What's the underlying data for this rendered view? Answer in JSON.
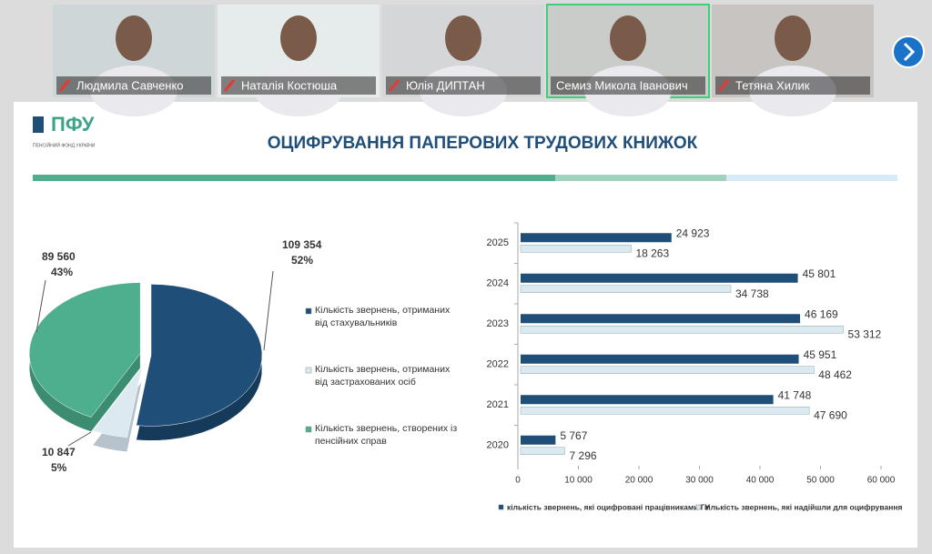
{
  "participants": [
    {
      "name": "Людмила Савченко",
      "muted": true,
      "active": false
    },
    {
      "name": "Наталія Костюша",
      "muted": true,
      "active": false
    },
    {
      "name": "Юлія ДИПТАН",
      "muted": true,
      "active": false
    },
    {
      "name": "Семиз Микола Іванович",
      "muted": false,
      "active": true
    },
    {
      "name": "Тетяна Хилик",
      "muted": true,
      "active": false
    }
  ],
  "logo": {
    "mark": "ПФУ",
    "caption": "ПЕНСІЙНИЙ ФОНД УКРАЇНИ"
  },
  "title": "ОЦИФРУВАННЯ ПАПЕРОВИХ ТРУДОВИХ КНИЖОК",
  "chart_data": [
    {
      "type": "pie",
      "categories": [
        "Кількість звернень, отриманих від стахувальників",
        "Кількість звернень, отриманих від застрахованих осіб",
        "Кількість звернень, створених із пенсійних справ"
      ],
      "values": [
        109354,
        10847,
        89560
      ],
      "value_labels": [
        "109 354",
        "10 847",
        "89 560"
      ],
      "percent_labels": [
        "52%",
        "5%",
        "43%"
      ],
      "colors": [
        "#1f4e79",
        "#dde9f1",
        "#4daf8d"
      ]
    },
    {
      "type": "hbar",
      "categories": [
        "2025",
        "2024",
        "2023",
        "2022",
        "2021",
        "2020"
      ],
      "series": [
        {
          "name": "кількість звернень, які оцифровані працівниками ГУ",
          "color": "#1f4e79",
          "values": [
            24923,
            45801,
            46169,
            45951,
            41748,
            5767
          ],
          "value_labels": [
            "24 923",
            "45 801",
            "46 169",
            "45 951",
            "41 748",
            "5 767"
          ]
        },
        {
          "name": "кількість звернень, які надійшли для оцифрування",
          "color": "#dde9f1",
          "values": [
            18263,
            34738,
            53312,
            48462,
            47690,
            7296
          ],
          "value_labels": [
            "18 263",
            "34 738",
            "53 312",
            "48 462",
            "47 690",
            "7 296"
          ]
        }
      ],
      "xlim": [
        0,
        60000
      ],
      "xticks": [
        0,
        {
          "value": 10000,
          "label": "10 000"
        },
        {
          "value": 20000,
          "label": "20 000"
        },
        {
          "value": 30000,
          "label": "30 000"
        },
        {
          "value": 40000,
          "label": "40 000"
        },
        {
          "value": 50000,
          "label": "50 000"
        },
        {
          "value": 60000,
          "label": "60 000"
        }
      ]
    }
  ]
}
